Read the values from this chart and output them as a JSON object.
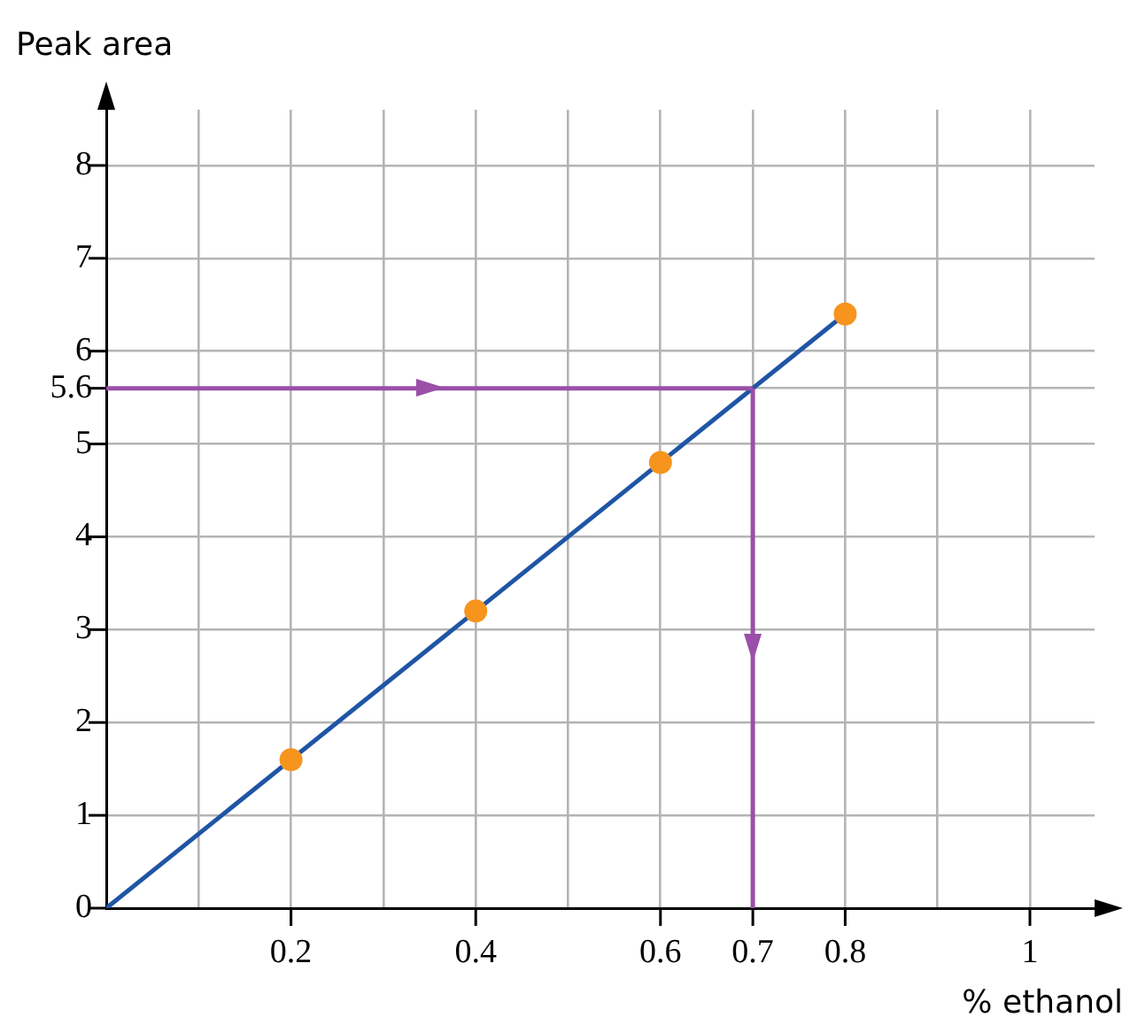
{
  "chart_data": {
    "type": "scatter",
    "xlabel": "% ethanol",
    "ylabel": "Peak area",
    "x": [
      0.2,
      0.4,
      0.6,
      0.8
    ],
    "series": [
      {
        "color": "#f7941d",
        "marker": "circle",
        "values": [
          1.6,
          3.2,
          4.8,
          6.4
        ]
      },
      {
        "type": "line",
        "color": "#1f55a5",
        "x": [
          0,
          0.8
        ],
        "values": [
          0,
          6.4
        ]
      }
    ],
    "xlim": [
      0,
      1.07
    ],
    "ylim": [
      0,
      8.6
    ],
    "xticks": [
      {
        "value": 0.1,
        "label": null
      },
      0.2,
      {
        "value": 0.3,
        "label": null
      },
      0.4,
      {
        "value": 0.5,
        "label": null
      },
      0.6,
      0.7,
      0.8,
      {
        "value": 0.9,
        "label": null
      },
      1
    ],
    "yticks": [
      0,
      1,
      2,
      3,
      4,
      5,
      5.6,
      6,
      7,
      8
    ],
    "ref_lines": [
      {
        "axis": "y",
        "value": 5.6,
        "color": "#9b4fa8"
      },
      {
        "axis": "x",
        "value": 0.7,
        "color": "#9b4fa8"
      }
    ],
    "grid": true,
    "legend": false
  }
}
